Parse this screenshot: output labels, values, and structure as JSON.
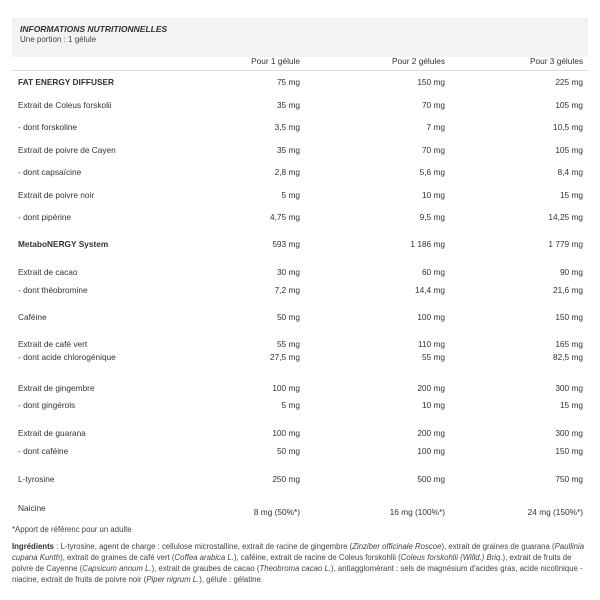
{
  "header": {
    "title": "INFORMATIONS NUTRITIONNELLES",
    "subtitle": "Une portion : 1 gélule"
  },
  "columns": [
    "Pour 1 gélule",
    "Pour 2 gélules",
    "Pour 3 gélules"
  ],
  "rows": [
    {
      "label": "FAT ENERGY DIFFUSER",
      "bold": true,
      "values": [
        "75 mg",
        "150 mg",
        "225 mg"
      ]
    },
    {
      "label": "Extrait de Coleus forskolii",
      "values": [
        "35 mg",
        "70 mg",
        "105 mg"
      ]
    },
    {
      "label": "- dont forskoline",
      "values": [
        "3,5 mg",
        "7 mg",
        "10,5 mg"
      ]
    },
    {
      "label": "Extrait de poivre de Cayen",
      "values": [
        "35 mg",
        "70 mg",
        "105 mg"
      ]
    },
    {
      "label": "- dont capsaïcine",
      "values": [
        "2,8 mg",
        "5,6 mg",
        "8,4 mg"
      ]
    },
    {
      "label": "Extrait de poivre noir",
      "values": [
        "5 mg",
        "10 mg",
        "15 mg"
      ]
    },
    {
      "label": "- dont pipérine",
      "values": [
        "4,75 mg",
        "9,5 mg",
        "14,25 mg"
      ]
    },
    {
      "label": "MetaboNERGY System",
      "bold": true,
      "values": [
        "593 mg",
        "1 186 mg",
        "1 779 mg"
      ]
    },
    {
      "label": "Extrait de cacao",
      "values": [
        "30 mg",
        "60 mg",
        "90 mg"
      ]
    },
    {
      "label": "- dont théobromine",
      "values": [
        "7,2 mg",
        "14,4 mg",
        "21,6 mg"
      ]
    },
    {
      "label": "Caféine",
      "values": [
        "50 mg",
        "100 mg",
        "150 mg"
      ]
    },
    {
      "label": "Extrait de café vert",
      "values": [
        "55 mg",
        "110 mg",
        "165 mg"
      ]
    },
    {
      "label": "- dont acide chlorogénique",
      "values": [
        "27,5 mg",
        "55 mg",
        "82,5 mg"
      ]
    },
    {
      "label": "Extrait de gingembre",
      "values": [
        "100 mg",
        "200 mg",
        "300 mg"
      ]
    },
    {
      "label": "- dont gingérols",
      "values": [
        "5 mg",
        "10 mg",
        "15 mg"
      ]
    },
    {
      "label": "Extrait de guarana",
      "values": [
        "100 mg",
        "200 mg",
        "300 mg"
      ]
    },
    {
      "label": "- dont caféine",
      "values": [
        "50 mg",
        "100 mg",
        "150 mg"
      ]
    },
    {
      "label": "L-tyrosine",
      "values": [
        "250 mg",
        "500 mg",
        "750 mg"
      ]
    },
    {
      "label": "Naicine",
      "values": [
        "8 mg (50%*)",
        "16 mg (100%*)",
        "24 mg (150%*)"
      ]
    }
  ],
  "footnote": "*Apport de référenc pour un adulte",
  "ingredients": {
    "label": "Ingrédients",
    "parts": [
      [
        " : L-tyrosine, agent de charge :  cellulose microstalline, extrait de racine de gingembre (",
        false
      ],
      [
        "Zinziber officinale Roscoe",
        true
      ],
      [
        "), extrait de graines de guarana (",
        false
      ],
      [
        "Paullinia cupana Kunth",
        true
      ],
      [
        "), extrait de graines de café vert (",
        false
      ],
      [
        "Coffea arabica L.",
        true
      ],
      [
        "), caféine, extrait de racine de Coleus forskohlii (",
        false
      ],
      [
        "Coleus forskohlii (Willd.) Briq.",
        true
      ],
      [
        "), extrait de fruits de poivre de Cayenne (",
        false
      ],
      [
        "Capsicum annum L.",
        true
      ],
      [
        "), extrait de graubes de cacao (",
        false
      ],
      [
        "Theobroma cacao L.",
        true
      ],
      [
        "), antiagglomérant : sels de magnésium d'acides gras, acide nicotinique - niacine, extrait de fruits de poivre noir (",
        false
      ],
      [
        "Piper nigrum L.",
        true
      ],
      [
        "), gélule : gélatine.",
        false
      ]
    ]
  }
}
